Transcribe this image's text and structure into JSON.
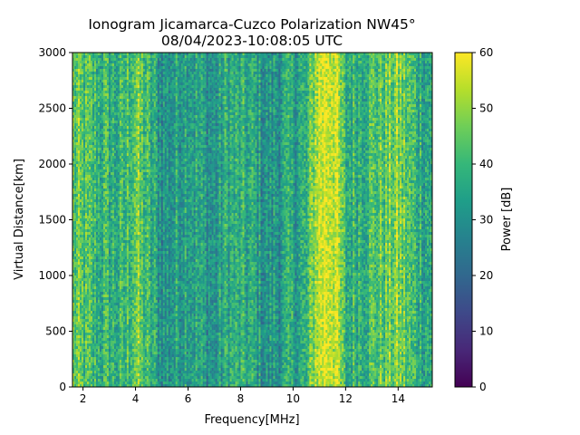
{
  "chart_data": {
    "type": "heatmap",
    "title_line1": "Ionogram Jicamarca-Cuzco Polarization NW45°",
    "title_line2": "08/04/2023-10:08:05 UTC",
    "xlabel": "Frequency[MHz]",
    "ylabel": "Virtual Distance[km]",
    "colorbar_label": "Power [dB]",
    "colormap": "viridis",
    "xlim": [
      1.6,
      15.3
    ],
    "ylim": [
      0,
      3000
    ],
    "clim": [
      0,
      60
    ],
    "x_ticks": [
      2,
      4,
      6,
      8,
      10,
      12,
      14
    ],
    "x_tick_labels": [
      "2",
      "4",
      "6",
      "8",
      "10",
      "12",
      "14"
    ],
    "y_ticks": [
      0,
      500,
      1000,
      1500,
      2000,
      2500,
      3000
    ],
    "y_tick_labels": [
      "0",
      "500",
      "1000",
      "1500",
      "2000",
      "2500",
      "3000"
    ],
    "colorbar_ticks": [
      0,
      10,
      20,
      30,
      40,
      50,
      60
    ],
    "colorbar_tick_labels": [
      "0",
      "10",
      "20",
      "30",
      "40",
      "50",
      "60"
    ],
    "grid": false,
    "frequency_profile_db": [
      {
        "f": 1.6,
        "db": 44
      },
      {
        "f": 2.0,
        "db": 42
      },
      {
        "f": 2.5,
        "db": 39
      },
      {
        "f": 3.0,
        "db": 38
      },
      {
        "f": 3.5,
        "db": 37
      },
      {
        "f": 4.0,
        "db": 47
      },
      {
        "f": 4.4,
        "db": 40
      },
      {
        "f": 5.0,
        "db": 31
      },
      {
        "f": 5.5,
        "db": 33
      },
      {
        "f": 6.0,
        "db": 37
      },
      {
        "f": 6.5,
        "db": 33
      },
      {
        "f": 7.0,
        "db": 30
      },
      {
        "f": 7.5,
        "db": 37
      },
      {
        "f": 8.0,
        "db": 36
      },
      {
        "f": 8.5,
        "db": 35
      },
      {
        "f": 9.0,
        "db": 30
      },
      {
        "f": 9.5,
        "db": 33
      },
      {
        "f": 10.0,
        "db": 35
      },
      {
        "f": 10.5,
        "db": 36
      },
      {
        "f": 10.9,
        "db": 54
      },
      {
        "f": 11.2,
        "db": 58
      },
      {
        "f": 11.6,
        "db": 56
      },
      {
        "f": 12.0,
        "db": 37
      },
      {
        "f": 12.5,
        "db": 40
      },
      {
        "f": 13.0,
        "db": 42
      },
      {
        "f": 13.5,
        "db": 44
      },
      {
        "f": 14.0,
        "db": 48
      },
      {
        "f": 14.5,
        "db": 40
      },
      {
        "f": 15.0,
        "db": 37
      },
      {
        "f": 15.3,
        "db": 36
      }
    ],
    "color_scale": [
      "#440154",
      "#482878",
      "#3e4989",
      "#31688e",
      "#26828e",
      "#1f9e89",
      "#35b779",
      "#6ece58",
      "#b5de2b",
      "#fde725"
    ]
  }
}
